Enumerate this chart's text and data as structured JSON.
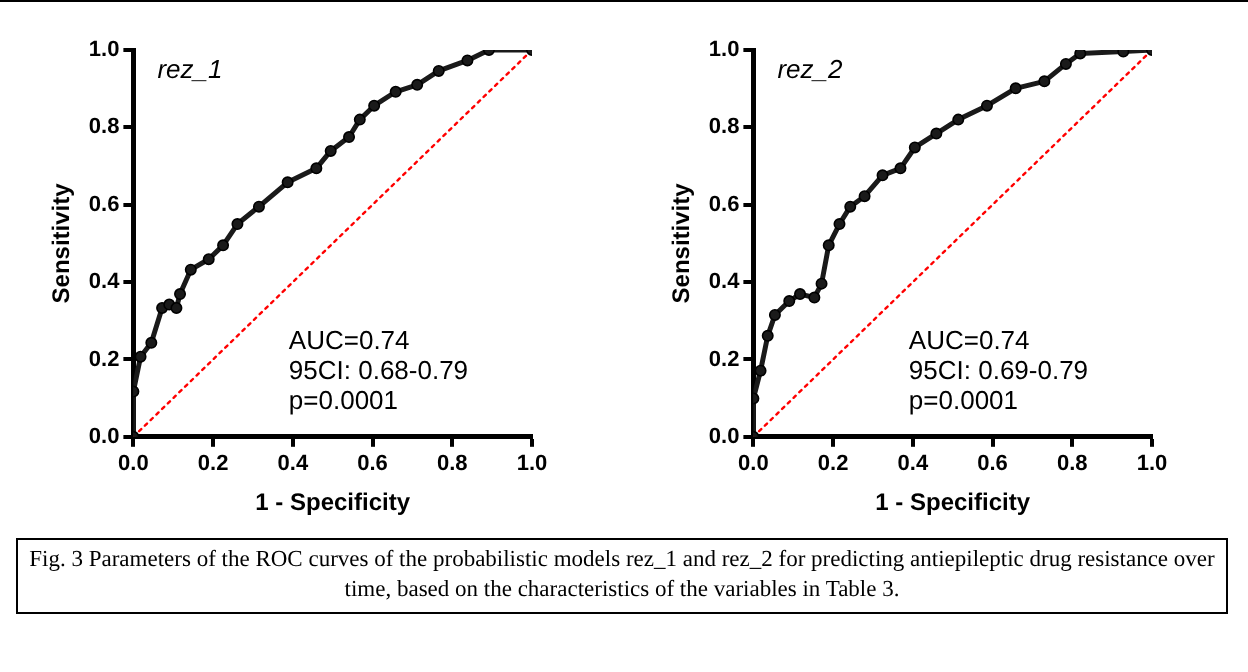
{
  "chart_data": [
    {
      "type": "line",
      "title": "rez_1",
      "xlabel": "1 - Specificity",
      "ylabel": "Sensitivity",
      "xlim": [
        0,
        1
      ],
      "ylim": [
        0,
        1
      ],
      "xticks": [
        {
          "value": 0,
          "label": "0.0"
        },
        {
          "value": 0.2,
          "label": "0.2"
        },
        {
          "value": 0.4,
          "label": "0.4"
        },
        {
          "value": 0.6,
          "label": "0.6"
        },
        {
          "value": 0.8,
          "label": "0.8"
        },
        {
          "value": 1,
          "label": "1.0"
        }
      ],
      "yticks": [
        {
          "value": 0,
          "label": "0.0"
        },
        {
          "value": 0.2,
          "label": "0.2"
        },
        {
          "value": 0.4,
          "label": "0.4"
        },
        {
          "value": 0.6,
          "label": "0.6"
        },
        {
          "value": 0.8,
          "label": "0.8"
        },
        {
          "value": 1,
          "label": "1.0"
        }
      ],
      "grid": false,
      "legend": false,
      "marker": "circle",
      "annotations": [
        "AUC=0.74",
        "95CI: 0.68-0.79",
        "p=0.0001"
      ],
      "series": [
        {
          "color": "#1a1a1a",
          "x": [
            0,
            0,
            0.018,
            0.045,
            0.072,
            0.09,
            0.108,
            0.117,
            0.144,
            0.189,
            0.225,
            0.261,
            0.315,
            0.387,
            0.459,
            0.495,
            0.541,
            0.568,
            0.604,
            0.658,
            0.712,
            0.766,
            0.838,
            0.892,
            1
          ],
          "values": [
            0,
            0.117,
            0.207,
            0.243,
            0.333,
            0.342,
            0.333,
            0.369,
            0.432,
            0.459,
            0.495,
            0.55,
            0.595,
            0.658,
            0.694,
            0.739,
            0.775,
            0.82,
            0.856,
            0.892,
            0.91,
            0.946,
            0.973,
            1,
            1
          ]
        },
        {
          "color": "#ff0000",
          "marker": "none",
          "line_style": "dotted",
          "x": [
            0,
            1
          ],
          "values": [
            0,
            1
          ]
        }
      ]
    },
    {
      "type": "line",
      "title": "rez_2",
      "xlabel": "1 - Specificity",
      "ylabel": "Sensitivity",
      "xlim": [
        0,
        1
      ],
      "ylim": [
        0,
        1
      ],
      "xticks": [
        {
          "value": 0,
          "label": "0.0"
        },
        {
          "value": 0.2,
          "label": "0.2"
        },
        {
          "value": 0.4,
          "label": "0.4"
        },
        {
          "value": 0.6,
          "label": "0.6"
        },
        {
          "value": 0.8,
          "label": "0.8"
        },
        {
          "value": 1,
          "label": "1.0"
        }
      ],
      "yticks": [
        {
          "value": 0,
          "label": "0.0"
        },
        {
          "value": 0.2,
          "label": "0.2"
        },
        {
          "value": 0.4,
          "label": "0.4"
        },
        {
          "value": 0.6,
          "label": "0.6"
        },
        {
          "value": 0.8,
          "label": "0.8"
        },
        {
          "value": 1,
          "label": "1.0"
        }
      ],
      "grid": false,
      "legend": false,
      "marker": "circle",
      "annotations": [
        "AUC=0.74",
        "95CI: 0.69-0.79",
        "p=0.0001",
        "Fig. 3 Parameters of the ROC curves of the probabilistic models rez_1 and rez_2 for predicting antiepileptic drug resistance over time, based on the characteristics of the variables in Table 3."
      ],
      "series": [
        {
          "color": "#1a1a1a",
          "x": [
            0,
            0,
            0.018,
            0.036,
            0.054,
            0.09,
            0.117,
            0.153,
            0.171,
            0.189,
            0.216,
            0.243,
            0.279,
            0.324,
            0.369,
            0.405,
            0.459,
            0.514,
            0.586,
            0.658,
            0.73,
            0.784,
            0.82,
            0.928,
            1
          ],
          "values": [
            0,
            0.099,
            0.171,
            0.261,
            0.315,
            0.351,
            0.369,
            0.36,
            0.396,
            0.495,
            0.55,
            0.595,
            0.622,
            0.676,
            0.694,
            0.748,
            0.784,
            0.82,
            0.856,
            0.901,
            0.919,
            0.964,
            0.991,
            0.996,
            1
          ]
        },
        {
          "color": "#ff0000",
          "marker": "none",
          "line_style": "dotted",
          "x": [
            0,
            1
          ],
          "values": [
            0,
            1
          ]
        }
      ]
    }
  ]
}
